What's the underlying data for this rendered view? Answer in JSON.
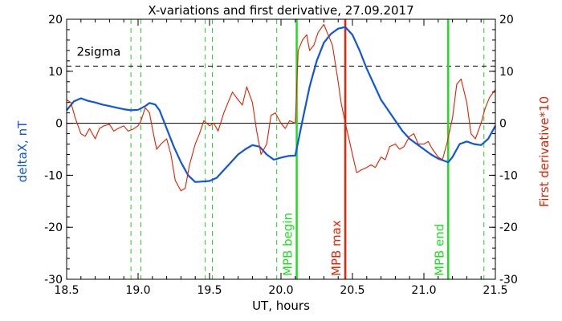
{
  "chart_data": {
    "type": "line",
    "title": "X-variations and first derivative, 27.09.2017",
    "xlabel": "UT, hours",
    "ylabel_left": "deltaX, nT",
    "ylabel_right": "First derivative*10",
    "xlim": [
      18.5,
      21.5
    ],
    "ylim_left": [
      -30,
      20
    ],
    "ylim_right": [
      -30,
      20
    ],
    "x_ticks": [
      18.5,
      19.0,
      19.5,
      20.0,
      20.5,
      21.0,
      21.5
    ],
    "x_tick_labels": [
      "18.5",
      "19.0",
      "19.5",
      "20.0",
      "20.5",
      "21.0",
      "21.5"
    ],
    "y_ticks": [
      -30,
      -20,
      -10,
      0,
      10,
      20
    ],
    "y_tick_labels": [
      "-30",
      "-20",
      "-10",
      "0",
      "10",
      "20"
    ],
    "zero_line": 0,
    "sigma_line": {
      "y": 11,
      "label": "2sigma",
      "color": "#000000"
    },
    "green_dashed_lines": [
      18.95,
      19.02,
      19.47,
      19.52,
      19.97,
      21.42
    ],
    "markers": [
      {
        "x": 20.11,
        "label": "MPB begin",
        "color": "#22dd22"
      },
      {
        "x": 20.45,
        "label": "MPB max",
        "color": "#ee2200"
      },
      {
        "x": 21.17,
        "label": "MPB end",
        "color": "#22dd22"
      }
    ],
    "series": [
      {
        "axis": "left",
        "color": "#1155dd",
        "x": [
          18.5,
          18.55,
          18.6,
          18.65,
          18.7,
          18.75,
          18.8,
          18.85,
          18.9,
          18.95,
          19.0,
          19.05,
          19.08,
          19.12,
          19.15,
          19.2,
          19.25,
          19.3,
          19.35,
          19.4,
          19.45,
          19.5,
          19.55,
          19.6,
          19.65,
          19.7,
          19.75,
          19.8,
          19.85,
          19.9,
          19.95,
          20.0,
          20.05,
          20.1,
          20.15,
          20.2,
          20.25,
          20.3,
          20.35,
          20.4,
          20.45,
          20.5,
          20.55,
          20.6,
          20.65,
          20.7,
          20.75,
          20.8,
          20.85,
          20.9,
          20.95,
          21.0,
          21.05,
          21.1,
          21.15,
          21.17,
          21.2,
          21.25,
          21.3,
          21.35,
          21.4,
          21.45,
          21.5
        ],
        "values": [
          2.5,
          4.2,
          4.8,
          4.3,
          4.0,
          3.6,
          3.3,
          3.0,
          2.7,
          2.5,
          2.6,
          3.3,
          3.9,
          3.6,
          2.5,
          -1.0,
          -4.5,
          -7.5,
          -10.0,
          -11.3,
          -11.2,
          -11.1,
          -10.5,
          -9.0,
          -7.5,
          -6.0,
          -5.0,
          -4.2,
          -4.5,
          -6.0,
          -7.0,
          -6.6,
          -6.3,
          -6.2,
          0.5,
          7.0,
          12.0,
          15.5,
          17.2,
          18.2,
          18.5,
          17.0,
          14.0,
          10.5,
          7.5,
          4.5,
          2.5,
          0.5,
          -1.5,
          -3.0,
          -4.0,
          -5.0,
          -6.0,
          -6.8,
          -7.3,
          -7.5,
          -6.5,
          -4.0,
          -3.5,
          -4.0,
          -4.2,
          -3.0,
          -0.5
        ]
      },
      {
        "axis": "right",
        "color": "#dd2200",
        "x": [
          18.5,
          18.53,
          18.56,
          18.6,
          18.63,
          18.66,
          18.7,
          18.73,
          18.76,
          18.8,
          18.83,
          18.86,
          18.9,
          18.93,
          18.96,
          19.0,
          19.02,
          19.05,
          19.08,
          19.1,
          19.13,
          19.16,
          19.2,
          19.23,
          19.26,
          19.3,
          19.33,
          19.36,
          19.4,
          19.43,
          19.46,
          19.5,
          19.53,
          19.56,
          19.6,
          19.63,
          19.66,
          19.7,
          19.73,
          19.76,
          19.8,
          19.83,
          19.86,
          19.9,
          19.93,
          19.96,
          20.0,
          20.03,
          20.06,
          20.1,
          20.12,
          20.15,
          20.18,
          20.2,
          20.23,
          20.26,
          20.3,
          20.33,
          20.36,
          20.4,
          20.42,
          20.45,
          20.48,
          20.5,
          20.53,
          20.56,
          20.6,
          20.63,
          20.66,
          20.7,
          20.73,
          20.76,
          20.8,
          20.83,
          20.86,
          20.9,
          20.93,
          20.96,
          21.0,
          21.03,
          21.06,
          21.1,
          21.13,
          21.16,
          21.2,
          21.23,
          21.26,
          21.3,
          21.33,
          21.36,
          21.4,
          21.43,
          21.46,
          21.5
        ],
        "values": [
          4.5,
          4.0,
          1.0,
          -2.0,
          -2.5,
          -1.0,
          -3.0,
          -1.0,
          -0.5,
          -0.2,
          -1.5,
          -1.0,
          -0.5,
          -1.5,
          -1.2,
          -0.5,
          0.5,
          3.0,
          2.0,
          -1.0,
          -5.0,
          -4.0,
          -3.0,
          -6.0,
          -11.0,
          -13.0,
          -12.5,
          -8.0,
          -4.0,
          -2.0,
          0.5,
          -0.5,
          0.0,
          -1.5,
          2.0,
          4.0,
          6.0,
          4.5,
          3.5,
          7.0,
          4.0,
          -1.5,
          -6.0,
          -4.0,
          1.5,
          2.0,
          0.0,
          -1.0,
          0.5,
          0.0,
          14.0,
          16.0,
          17.0,
          14.0,
          15.0,
          17.5,
          19.0,
          17.0,
          15.0,
          8.0,
          4.0,
          0.0,
          -3.5,
          -6.0,
          -9.5,
          -9.0,
          -8.5,
          -8.0,
          -8.5,
          -6.5,
          -7.0,
          -4.5,
          -4.0,
          -5.0,
          -4.5,
          -2.5,
          -2.0,
          -4.0,
          -4.0,
          -3.5,
          -5.0,
          -6.5,
          -7.0,
          -4.0,
          1.0,
          7.5,
          8.5,
          4.0,
          -2.0,
          -3.0,
          0.0,
          3.0,
          5.0,
          6.5
        ]
      }
    ]
  }
}
